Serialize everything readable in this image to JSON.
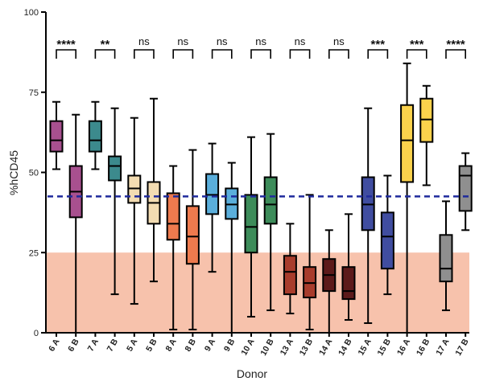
{
  "chart_data": {
    "type": "box",
    "xlabel": "Donor",
    "ylabel": "%hCD45",
    "ylim": [
      0,
      100
    ],
    "yticks": [
      "0",
      "25",
      "50",
      "75",
      "100"
    ],
    "reference_line": {
      "value": 42.5,
      "style": "dashed",
      "color": "#1f2a9c"
    },
    "shaded_region": {
      "from": 0,
      "to": 25,
      "color": "#f7c2ac"
    },
    "categories": [
      "6 A",
      "6 B",
      "7 A",
      "7 B",
      "5 A",
      "5 B",
      "8 A",
      "8 B",
      "9 A",
      "9 B",
      "10 A",
      "10 B",
      "13 A",
      "13 B",
      "14 A",
      "14 B",
      "15 A",
      "15 B",
      "16 A",
      "16 B",
      "17 A",
      "17 B"
    ],
    "boxes": [
      {
        "label": "6 A",
        "min": 51,
        "q1": 56.5,
        "median": 60,
        "q3": 66,
        "max": 72,
        "color": "#a8508f"
      },
      {
        "label": "6 B",
        "min": 0,
        "q1": 36,
        "median": 44,
        "q3": 52,
        "max": 68,
        "color": "#a8508f"
      },
      {
        "label": "7 A",
        "min": 51,
        "q1": 56.5,
        "median": 60,
        "q3": 66,
        "max": 72,
        "color": "#3c8a8d"
      },
      {
        "label": "7 B",
        "min": 12,
        "q1": 47.5,
        "median": 52,
        "q3": 55,
        "max": 70,
        "color": "#3c8a8d"
      },
      {
        "label": "5 A",
        "min": 9,
        "q1": 40.5,
        "median": 45,
        "q3": 49,
        "max": 67,
        "color": "#f3dcb2"
      },
      {
        "label": "5 B",
        "min": 16,
        "q1": 34,
        "median": 40.5,
        "q3": 47,
        "max": 73,
        "color": "#f3dcb2"
      },
      {
        "label": "8 A",
        "min": 1,
        "q1": 29,
        "median": 34,
        "q3": 43.5,
        "max": 52,
        "color": "#ee7a4e"
      },
      {
        "label": "8 B",
        "min": 1,
        "q1": 21.5,
        "median": 30,
        "q3": 39.5,
        "max": 57,
        "color": "#ee7a4e"
      },
      {
        "label": "9 A",
        "min": 19,
        "q1": 37,
        "median": 43,
        "q3": 49.5,
        "max": 59,
        "color": "#5aaedb"
      },
      {
        "label": "9 B",
        "min": 0,
        "q1": 35.5,
        "median": 40,
        "q3": 45,
        "max": 53,
        "color": "#5aaedb"
      },
      {
        "label": "10 A",
        "min": 5,
        "q1": 25,
        "median": 33,
        "q3": 43,
        "max": 61,
        "color": "#3d8c5a"
      },
      {
        "label": "10 B",
        "min": 7,
        "q1": 34,
        "median": 40,
        "q3": 48.5,
        "max": 62,
        "color": "#3d8c5a"
      },
      {
        "label": "13 A",
        "min": 6,
        "q1": 12,
        "median": 19,
        "q3": 24,
        "max": 34,
        "color": "#a83c2c"
      },
      {
        "label": "13 B",
        "min": 1,
        "q1": 11,
        "median": 15.5,
        "q3": 20.5,
        "max": 43,
        "color": "#a83c2c"
      },
      {
        "label": "14 A",
        "min": 0,
        "q1": 13,
        "median": 18,
        "q3": 23,
        "max": 32,
        "color": "#5c1a1a"
      },
      {
        "label": "14 B",
        "min": 4,
        "q1": 10.5,
        "median": 13,
        "q3": 20.5,
        "max": 37,
        "color": "#5c1a1a"
      },
      {
        "label": "15 A",
        "min": 3,
        "q1": 32,
        "median": 40,
        "q3": 48.5,
        "max": 70,
        "color": "#404da0"
      },
      {
        "label": "15 B",
        "min": 12,
        "q1": 20,
        "median": 30,
        "q3": 37.5,
        "max": 49,
        "color": "#404da0"
      },
      {
        "label": "16 A",
        "min": 0,
        "q1": 47,
        "median": 60,
        "q3": 71,
        "max": 84,
        "color": "#fbd24c"
      },
      {
        "label": "16 B",
        "min": 46,
        "q1": 59.5,
        "median": 66.5,
        "q3": 73,
        "max": 77,
        "color": "#fbd24c"
      },
      {
        "label": "17 A",
        "min": 7,
        "q1": 16,
        "median": 20,
        "q3": 30.5,
        "max": 41,
        "color": "#8f8f8f"
      },
      {
        "label": "17 B",
        "min": 32,
        "q1": 38,
        "median": 49,
        "q3": 52,
        "max": 56,
        "color": "#8f8f8f"
      }
    ],
    "comparisons": [
      {
        "pair": [
          "6 A",
          "6 B"
        ],
        "label": "****"
      },
      {
        "pair": [
          "7 A",
          "7 B"
        ],
        "label": "**"
      },
      {
        "pair": [
          "5 A",
          "5 B"
        ],
        "label": "ns"
      },
      {
        "pair": [
          "8 A",
          "8 B"
        ],
        "label": "ns"
      },
      {
        "pair": [
          "9 A",
          "9 B"
        ],
        "label": "ns"
      },
      {
        "pair": [
          "10 A",
          "10 B"
        ],
        "label": "ns"
      },
      {
        "pair": [
          "13 A",
          "13 B"
        ],
        "label": "ns"
      },
      {
        "pair": [
          "14 A",
          "14 B"
        ],
        "label": "ns"
      },
      {
        "pair": [
          "15 A",
          "15 B"
        ],
        "label": "***"
      },
      {
        "pair": [
          "16 A",
          "16 B"
        ],
        "label": "***"
      },
      {
        "pair": [
          "17 A",
          "17 B"
        ],
        "label": "****"
      }
    ]
  }
}
